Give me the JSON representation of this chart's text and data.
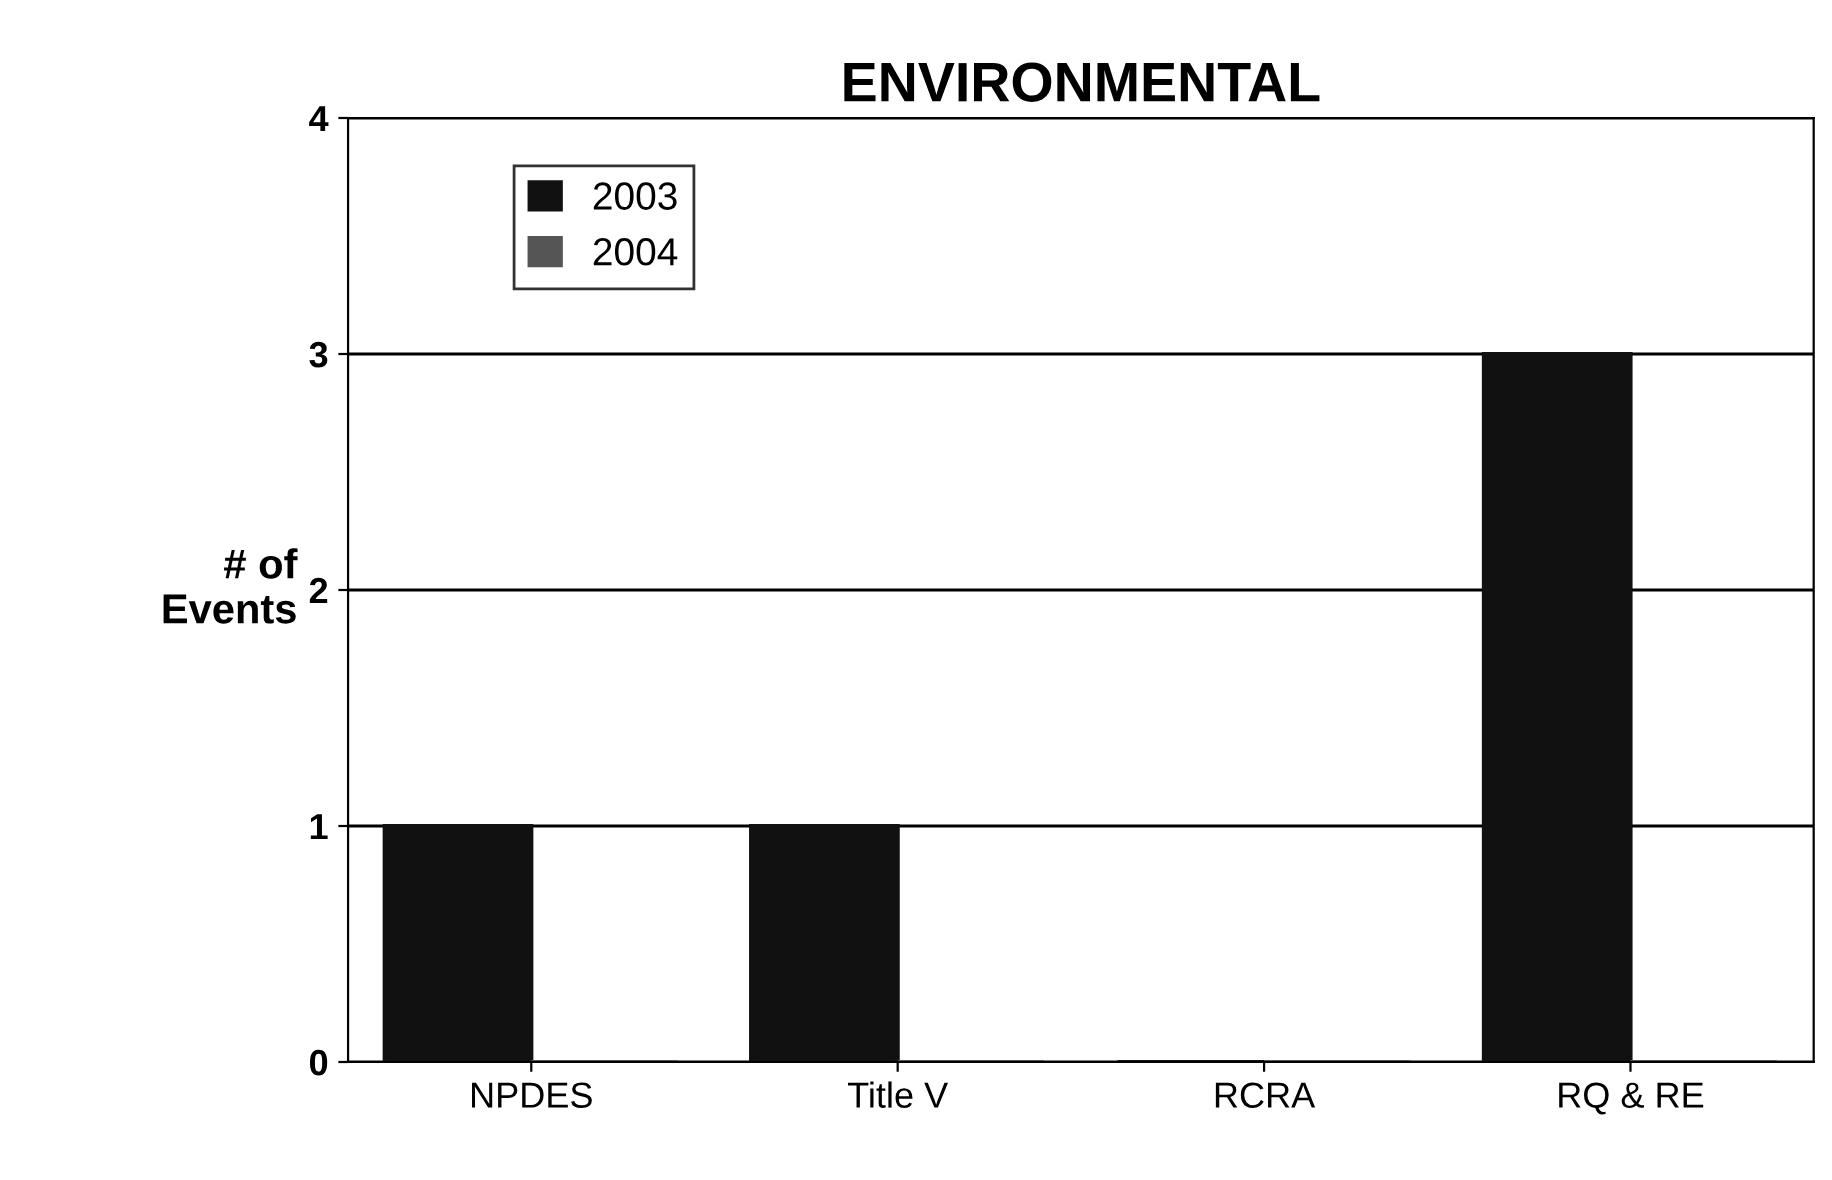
{
  "chart_data": {
    "type": "bar",
    "title": "ENVIRONMENTAL",
    "ylabel": "# of\nEvents",
    "categories": [
      "NPDES",
      "Title V",
      "RCRA",
      "RQ & RE"
    ],
    "series": [
      {
        "name": "2003",
        "color": "#111111",
        "values": [
          1,
          1,
          0,
          3
        ]
      },
      {
        "name": "2004",
        "color": "#555555",
        "values": [
          0,
          0,
          0,
          0
        ]
      }
    ],
    "ylim": [
      0,
      4
    ],
    "yticks": [
      0,
      1,
      2,
      3,
      4
    ],
    "grid": "y",
    "legend": "top left"
  }
}
